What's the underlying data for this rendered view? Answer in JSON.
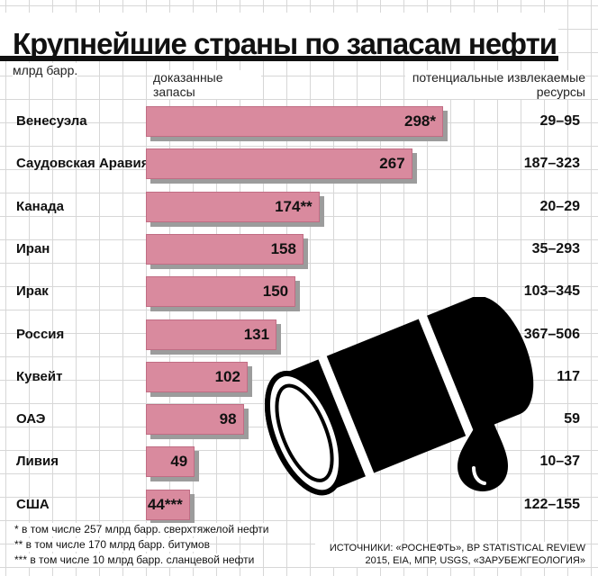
{
  "title": "Крупнейшие страны по запасам нефти",
  "unit_label": "млрд барр.",
  "col_proven": "доказанные запасы",
  "col_potential": "потенциальные извлекаемые ресурсы",
  "colors": {
    "bar": "#d98a9e",
    "shadow": "#9c9c9c",
    "text": "#111111"
  },
  "chart_data": {
    "type": "bar",
    "orientation": "horizontal",
    "title": "Крупнейшие страны по запасам нефти",
    "unit": "млрд барр.",
    "categories": [
      "Венесуэла",
      "Саудовская Аравия",
      "Канада",
      "Иран",
      "Ирак",
      "Россия",
      "Кувейт",
      "ОАЭ",
      "Ливия",
      "США"
    ],
    "series": [
      {
        "name": "доказанные запасы",
        "values": [
          298,
          267,
          174,
          158,
          150,
          131,
          102,
          98,
          49,
          44
        ],
        "labels": [
          "298*",
          "267",
          "174**",
          "158",
          "150",
          "131",
          "102",
          "98",
          "49",
          "44***"
        ]
      }
    ],
    "potential": [
      "29–95",
      "187–323",
      "20–29",
      "35–293",
      "103–345",
      "367–506",
      "117",
      "59",
      "10–37",
      "122–155"
    ],
    "xlim": [
      0,
      300
    ]
  },
  "footnotes": [
    "* в том числе 257 млрд барр. сверхтяжелой нефти",
    "** в том числе 170 млрд барр. битумов",
    "*** в том числе 10 млрд барр. сланцевой нефти"
  ],
  "sources": "ИСТОЧНИКИ: «РОСНЕФТЬ», BP STATISTICAL REVIEW 2015, EIA, МПР, USGS, «ЗАРУБЕЖГЕОЛОГИЯ»",
  "barrel_icon": "oil-barrel-icon",
  "drop_icon": "oil-drop-icon"
}
